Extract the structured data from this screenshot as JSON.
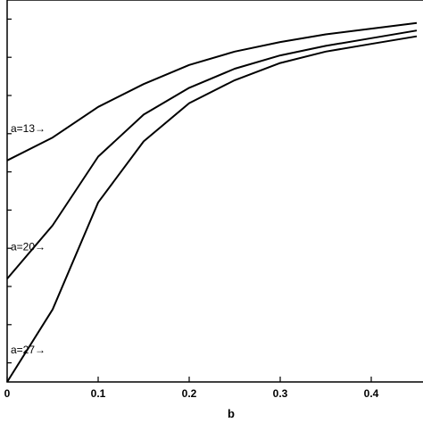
{
  "chart_data": {
    "type": "line",
    "title": "",
    "xlabel": "b",
    "ylabel": "",
    "xlim": [
      0,
      0.45
    ],
    "ylim": [
      0,
      1
    ],
    "grid": false,
    "x_ticks": [
      {
        "value": 0,
        "label": "0"
      },
      {
        "value": 0.1,
        "label": "0.1"
      },
      {
        "value": 0.2,
        "label": "0.2"
      },
      {
        "value": 0.3,
        "label": "0.3"
      },
      {
        "value": 0.4,
        "label": "0.4"
      }
    ],
    "y_ticks": [
      0.05,
      0.15,
      0.25,
      0.35,
      0.45,
      0.55,
      0.65,
      0.75,
      0.85,
      0.95
    ],
    "series": [
      {
        "name": "a=13",
        "x": [
          0,
          0.05,
          0.1,
          0.15,
          0.2,
          0.25,
          0.3,
          0.35,
          0.4,
          0.45
        ],
        "y": [
          0.58,
          0.64,
          0.72,
          0.78,
          0.83,
          0.865,
          0.89,
          0.91,
          0.925,
          0.94
        ]
      },
      {
        "name": "a=20",
        "x": [
          0,
          0.05,
          0.1,
          0.15,
          0.2,
          0.25,
          0.3,
          0.35,
          0.4,
          0.45
        ],
        "y": [
          0.27,
          0.41,
          0.59,
          0.7,
          0.77,
          0.82,
          0.855,
          0.88,
          0.9,
          0.92
        ]
      },
      {
        "name": "a=27",
        "x": [
          0,
          0.05,
          0.1,
          0.15,
          0.2,
          0.25,
          0.3,
          0.35,
          0.4,
          0.45
        ],
        "y": [
          0.0,
          0.19,
          0.47,
          0.63,
          0.73,
          0.79,
          0.835,
          0.865,
          0.885,
          0.905
        ]
      }
    ],
    "annotations": [
      {
        "text": "a=13→",
        "series": "a=13"
      },
      {
        "text": "a=20→",
        "series": "a=20"
      },
      {
        "text": "a=27→",
        "series": "a=27"
      }
    ]
  }
}
